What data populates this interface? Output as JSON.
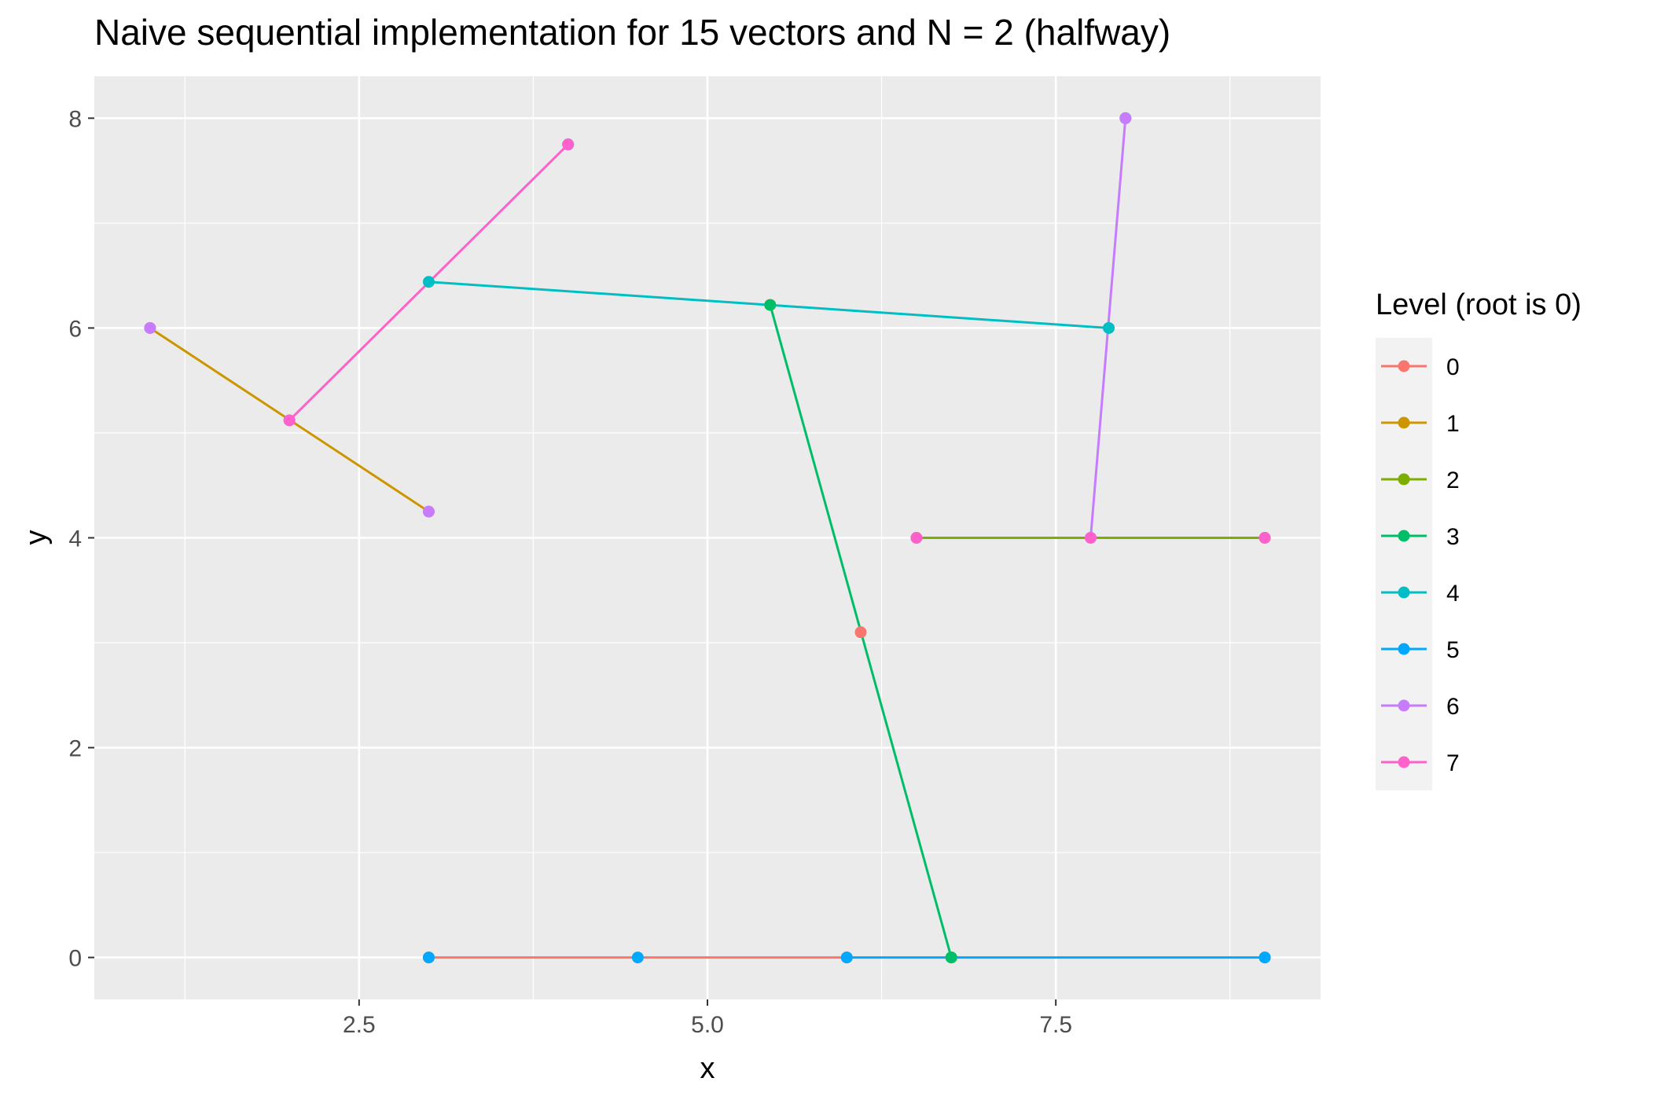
{
  "chart_data": {
    "type": "line",
    "title": "Naive sequential implementation for 15 vectors and N = 2 (halfway)",
    "xlabel": "x",
    "ylabel": "y",
    "xlim": [
      0.6,
      9.4
    ],
    "ylim": [
      -0.4,
      8.4
    ],
    "x_ticks": [
      2.5,
      5.0,
      7.5
    ],
    "x_tick_labels": [
      "2.5",
      "5.0",
      "7.5"
    ],
    "y_ticks": [
      0,
      2,
      4,
      6,
      8
    ],
    "y_tick_labels": [
      "0",
      "2",
      "4",
      "6",
      "8"
    ],
    "grid": true,
    "legend": {
      "title": "Level (root is 0)",
      "position": "right",
      "entries": [
        "0",
        "1",
        "2",
        "3",
        "4",
        "5",
        "6",
        "7"
      ]
    },
    "colors": {
      "0": "#F8766D",
      "1": "#CD9600",
      "2": "#7CAE00",
      "3": "#00BE67",
      "4": "#00BFC4",
      "5": "#00A9FF",
      "6": "#C77CFF",
      "7": "#FF61CC"
    },
    "series": [
      {
        "name": "0",
        "segments": [
          {
            "from": [
              3.0,
              0.0
            ],
            "to": [
              6.0,
              0.0
            ]
          }
        ],
        "points": [
          [
            6.1,
            3.1
          ]
        ]
      },
      {
        "name": "1",
        "segments": [
          {
            "from": [
              1.0,
              6.0
            ],
            "to": [
              3.0,
              4.25
            ]
          }
        ],
        "points": [
          [
            5.45,
            6.22
          ]
        ]
      },
      {
        "name": "2",
        "segments": [
          {
            "from": [
              6.5,
              4.0
            ],
            "to": [
              9.0,
              4.0
            ]
          }
        ],
        "points": [
          [
            6.75,
            0.0
          ],
          [
            9.0,
            0.0
          ]
        ]
      },
      {
        "name": "3",
        "segments": [
          {
            "from": [
              5.45,
              6.22
            ],
            "to": [
              6.75,
              0.0
            ]
          }
        ],
        "points": [
          [
            8.0,
            8.0
          ]
        ]
      },
      {
        "name": "4",
        "segments": [
          {
            "from": [
              3.0,
              6.44
            ],
            "to": [
              7.88,
              6.0
            ]
          }
        ],
        "points": [
          [
            4.0,
            7.75
          ]
        ]
      },
      {
        "name": "5",
        "segments": [
          {
            "from": [
              6.0,
              0.0
            ],
            "to": [
              9.0,
              0.0
            ]
          }
        ],
        "points": [
          [
            3.0,
            0.0
          ],
          [
            4.5,
            0.0
          ]
        ]
      },
      {
        "name": "6",
        "segments": [
          {
            "from": [
              7.75,
              4.0
            ],
            "to": [
              8.0,
              8.0
            ]
          }
        ],
        "points": [
          [
            1.0,
            6.0
          ],
          [
            3.0,
            4.25
          ],
          [
            2.0,
            5.12
          ]
        ]
      },
      {
        "name": "7",
        "segments": [
          {
            "from": [
              2.0,
              5.12
            ],
            "to": [
              4.0,
              7.75
            ]
          }
        ],
        "points": [
          [
            6.5,
            4.0
          ],
          [
            9.0,
            4.0
          ],
          [
            7.75,
            4.0
          ]
        ]
      }
    ]
  }
}
